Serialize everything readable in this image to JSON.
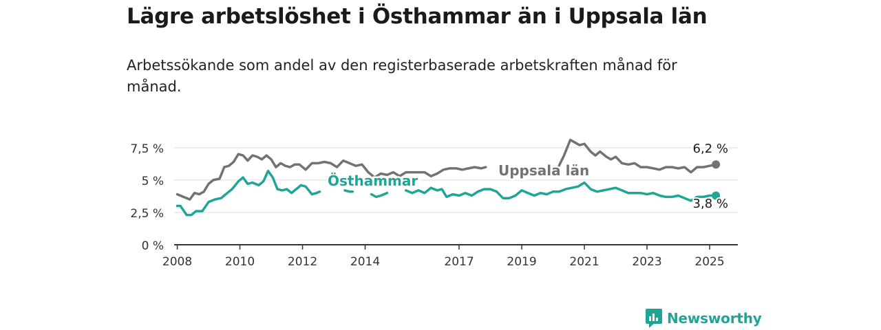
{
  "title": "Lägre arbetslöshet i Östhammar än i Uppsala län",
  "subtitle": "Arbetssökande som andel av den registerbaserade arbetskraften månad för månad.",
  "brand": {
    "name": "Newsworthy",
    "icon": "bar-chart-speech-icon",
    "color": "#1fa598"
  },
  "chart_data": {
    "type": "line",
    "title": "Lägre arbetslöshet i Östhammar än i Uppsala län",
    "subtitle": "Arbetssökande som andel av den registerbaserade arbetskraften månad för månad.",
    "xlabel": "",
    "ylabel": "",
    "xlim": [
      2007.9,
      2025.9
    ],
    "ylim": [
      0,
      8.5
    ],
    "grid": true,
    "yticks": [
      0,
      2.5,
      5,
      7.5
    ],
    "ytick_labels": [
      "0 %",
      "2,5 %",
      "5 %",
      "7,5 %"
    ],
    "xticks": [
      2008,
      2010,
      2012,
      2014,
      2017,
      2019,
      2021,
      2023,
      2025
    ],
    "xtick_labels": [
      "2008",
      "2010",
      "2012",
      "2014",
      "2017",
      "2019",
      "2021",
      "2023",
      "2025"
    ],
    "series": [
      {
        "name": "Uppsala län",
        "color": "#727174",
        "end_label": "6,2 %",
        "points": [
          [
            2008.0,
            3.9
          ],
          [
            2008.2,
            3.7
          ],
          [
            2008.4,
            3.5
          ],
          [
            2008.55,
            4.0
          ],
          [
            2008.7,
            3.9
          ],
          [
            2008.85,
            4.1
          ],
          [
            2009.0,
            4.7
          ],
          [
            2009.15,
            5.0
          ],
          [
            2009.35,
            5.1
          ],
          [
            2009.5,
            6.0
          ],
          [
            2009.65,
            6.1
          ],
          [
            2009.8,
            6.4
          ],
          [
            2009.95,
            7.0
          ],
          [
            2010.1,
            6.9
          ],
          [
            2010.25,
            6.5
          ],
          [
            2010.4,
            6.9
          ],
          [
            2010.55,
            6.8
          ],
          [
            2010.7,
            6.6
          ],
          [
            2010.85,
            6.9
          ],
          [
            2011.0,
            6.6
          ],
          [
            2011.15,
            6.0
          ],
          [
            2011.3,
            6.3
          ],
          [
            2011.45,
            6.1
          ],
          [
            2011.6,
            6.0
          ],
          [
            2011.75,
            6.2
          ],
          [
            2011.9,
            6.2
          ],
          [
            2012.1,
            5.8
          ],
          [
            2012.3,
            6.3
          ],
          [
            2012.5,
            6.3
          ],
          [
            2012.7,
            6.4
          ],
          [
            2012.9,
            6.3
          ],
          [
            2013.1,
            6.0
          ],
          [
            2013.3,
            6.5
          ],
          [
            2013.5,
            6.3
          ],
          [
            2013.7,
            6.1
          ],
          [
            2013.9,
            6.2
          ],
          [
            2014.1,
            5.6
          ],
          [
            2014.3,
            5.2
          ],
          [
            2014.5,
            5.5
          ],
          [
            2014.7,
            5.4
          ],
          [
            2014.9,
            5.6
          ],
          [
            2015.1,
            5.3
          ],
          [
            2015.3,
            5.6
          ],
          [
            2015.5,
            5.6
          ],
          [
            2015.7,
            5.6
          ],
          [
            2015.9,
            5.6
          ],
          [
            2016.1,
            5.3
          ],
          [
            2016.3,
            5.5
          ],
          [
            2016.5,
            5.8
          ],
          [
            2016.7,
            5.9
          ],
          [
            2016.9,
            5.9
          ],
          [
            2017.1,
            5.8
          ],
          [
            2017.3,
            5.9
          ],
          [
            2017.5,
            6.0
          ],
          [
            2017.7,
            5.9
          ],
          [
            2017.85,
            6.0
          ],
          null,
          [
            2020.15,
            5.9
          ],
          [
            2020.35,
            6.9
          ],
          [
            2020.55,
            8.1
          ],
          [
            2020.7,
            7.9
          ],
          [
            2020.85,
            7.7
          ],
          [
            2021.0,
            7.8
          ],
          [
            2021.2,
            7.2
          ],
          [
            2021.35,
            6.9
          ],
          [
            2021.5,
            7.2
          ],
          [
            2021.7,
            6.8
          ],
          [
            2021.85,
            6.6
          ],
          [
            2022.0,
            6.8
          ],
          [
            2022.2,
            6.3
          ],
          [
            2022.4,
            6.2
          ],
          [
            2022.6,
            6.3
          ],
          [
            2022.8,
            6.0
          ],
          [
            2023.0,
            6.0
          ],
          [
            2023.2,
            5.9
          ],
          [
            2023.4,
            5.8
          ],
          [
            2023.6,
            6.0
          ],
          [
            2023.8,
            6.0
          ],
          [
            2024.0,
            5.9
          ],
          [
            2024.2,
            6.0
          ],
          [
            2024.4,
            5.6
          ],
          [
            2024.6,
            6.0
          ],
          [
            2024.8,
            6.0
          ],
          [
            2025.0,
            6.1
          ],
          [
            2025.2,
            6.2
          ]
        ]
      },
      {
        "name": "Östhammar",
        "color": "#1fa598",
        "end_label": "3,8 %",
        "points": [
          [
            2008.0,
            3.0
          ],
          [
            2008.1,
            3.0
          ],
          [
            2008.3,
            2.3
          ],
          [
            2008.45,
            2.3
          ],
          [
            2008.6,
            2.6
          ],
          [
            2008.8,
            2.6
          ],
          [
            2009.0,
            3.3
          ],
          [
            2009.2,
            3.5
          ],
          [
            2009.4,
            3.6
          ],
          [
            2009.6,
            4.0
          ],
          [
            2009.75,
            4.3
          ],
          [
            2009.95,
            4.9
          ],
          [
            2010.1,
            5.2
          ],
          [
            2010.25,
            4.7
          ],
          [
            2010.4,
            4.8
          ],
          [
            2010.6,
            4.6
          ],
          [
            2010.75,
            4.9
          ],
          [
            2010.9,
            5.7
          ],
          [
            2011.05,
            5.2
          ],
          [
            2011.2,
            4.3
          ],
          [
            2011.35,
            4.2
          ],
          [
            2011.5,
            4.3
          ],
          [
            2011.65,
            4.0
          ],
          [
            2011.8,
            4.3
          ],
          [
            2011.95,
            4.6
          ],
          [
            2012.1,
            4.5
          ],
          [
            2012.3,
            3.9
          ],
          [
            2012.45,
            4.0
          ],
          [
            2012.55,
            4.1
          ],
          null,
          [
            2013.35,
            4.2
          ],
          [
            2013.5,
            4.1
          ],
          [
            2013.6,
            4.1
          ],
          null,
          [
            2014.2,
            3.9
          ],
          [
            2014.35,
            3.7
          ],
          [
            2014.5,
            3.8
          ],
          [
            2014.7,
            4.0
          ],
          null,
          [
            2015.3,
            4.2
          ],
          [
            2015.5,
            4.0
          ],
          [
            2015.7,
            4.2
          ],
          [
            2015.9,
            4.0
          ],
          [
            2016.1,
            4.4
          ],
          [
            2016.3,
            4.2
          ],
          [
            2016.45,
            4.3
          ],
          [
            2016.6,
            3.7
          ],
          [
            2016.8,
            3.9
          ],
          [
            2017.0,
            3.8
          ],
          [
            2017.2,
            4.0
          ],
          [
            2017.4,
            3.8
          ],
          [
            2017.6,
            4.1
          ],
          [
            2017.8,
            4.3
          ],
          [
            2018.0,
            4.3
          ],
          [
            2018.2,
            4.1
          ],
          [
            2018.4,
            3.6
          ],
          [
            2018.6,
            3.6
          ],
          [
            2018.8,
            3.8
          ],
          [
            2019.0,
            4.2
          ],
          [
            2019.2,
            4.0
          ],
          [
            2019.4,
            3.8
          ],
          [
            2019.6,
            4.0
          ],
          [
            2019.8,
            3.9
          ],
          [
            2020.0,
            4.1
          ],
          [
            2020.2,
            4.1
          ],
          [
            2020.4,
            4.3
          ],
          [
            2020.6,
            4.4
          ],
          [
            2020.8,
            4.5
          ],
          [
            2021.0,
            4.8
          ],
          [
            2021.2,
            4.3
          ],
          [
            2021.4,
            4.1
          ],
          [
            2021.6,
            4.2
          ],
          [
            2021.8,
            4.3
          ],
          [
            2022.0,
            4.4
          ],
          [
            2022.2,
            4.2
          ],
          [
            2022.4,
            4.0
          ],
          [
            2022.6,
            4.0
          ],
          [
            2022.8,
            4.0
          ],
          [
            2023.0,
            3.9
          ],
          [
            2023.2,
            4.0
          ],
          [
            2023.4,
            3.8
          ],
          [
            2023.6,
            3.7
          ],
          [
            2023.8,
            3.7
          ],
          [
            2024.0,
            3.8
          ],
          [
            2024.2,
            3.6
          ],
          [
            2024.4,
            3.4
          ],
          [
            2024.6,
            3.7
          ],
          [
            2024.8,
            3.7
          ],
          [
            2025.0,
            3.8
          ],
          [
            2025.2,
            3.8
          ]
        ]
      }
    ]
  }
}
